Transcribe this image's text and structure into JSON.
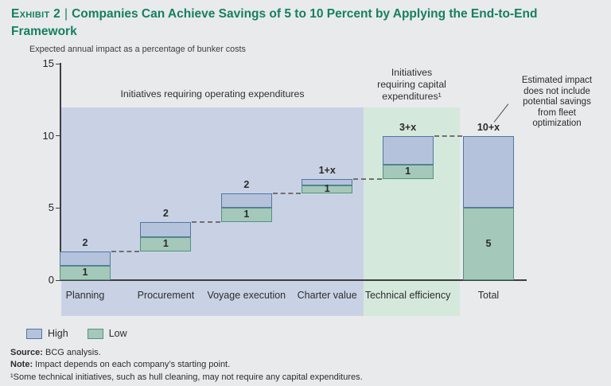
{
  "title": {
    "exhibit": "Exhibit 2",
    "separator": "|",
    "text": "Companies Can Achieve Savings of 5 to 10 Percent by Applying the End-to-End Framework"
  },
  "subtitle": "Expected annual impact as a percentage of bunker costs",
  "colors": {
    "title_green": "#15805f",
    "page_background": "#e9eaec",
    "opex_region": "#c9d2e5",
    "capex_region": "#d5e8dc",
    "high_fill": "#b5c2dc",
    "high_border": "#4f789f",
    "low_fill": "#a4c8b9",
    "low_border": "#55917f"
  },
  "chart_data": {
    "type": "bar",
    "subtype": "stacked-waterfall",
    "title": "Expected annual impact as a percentage of bunker costs",
    "xlabel": "",
    "ylabel": "",
    "ylim": [
      0,
      15
    ],
    "y_axis": {
      "ticks": [
        0,
        5,
        10,
        15
      ]
    },
    "grid": false,
    "legend_position": "bottom-left",
    "categories": [
      "Planning",
      "Procurement",
      "Voyage execution",
      "Charter value",
      "Technical efficiency",
      "Total"
    ],
    "series": [
      {
        "name": "Low",
        "color": "#a4c8b9"
      },
      {
        "name": "High",
        "color": "#b5c2dc"
      }
    ],
    "bars": [
      {
        "category": "Planning",
        "base": 0,
        "low": 1,
        "high": 1,
        "total_label": "2",
        "low_label": "1"
      },
      {
        "category": "Procurement",
        "base": 2,
        "low": 1,
        "high": 1,
        "total_label": "2",
        "low_label": "1"
      },
      {
        "category": "Voyage execution",
        "base": 4,
        "low": 1,
        "high": 1,
        "total_label": "2",
        "low_label": "1"
      },
      {
        "category": "Charter value",
        "base": 6,
        "low": 0.55,
        "high": 0.45,
        "total_label": "1+x",
        "low_label": "1"
      },
      {
        "category": "Technical efficiency",
        "base": 7,
        "low": 1,
        "high": 2,
        "total_label": "3+x",
        "low_label": "1"
      },
      {
        "category": "Total",
        "base": 0,
        "low": 5,
        "high": 5,
        "total_label": "10+x",
        "low_label": "5"
      }
    ],
    "regions": [
      {
        "id": "opex",
        "label": "Initiatives requiring operating expenditures",
        "covers": [
          "Planning",
          "Procurement",
          "Voyage execution",
          "Charter value"
        ]
      },
      {
        "id": "capex",
        "label": "Initiatives\nrequiring capital\nexpenditures¹",
        "covers": [
          "Technical efficiency"
        ]
      }
    ],
    "legend": [
      {
        "label": "High",
        "color": "#b5c2dc"
      },
      {
        "label": "Low",
        "color": "#a4c8b9"
      }
    ],
    "annotation": "Estimated impact\ndoes not include\npotential savings\nfrom fleet\noptimization"
  },
  "footer": {
    "source_label": "Source:",
    "source_text": "BCG analysis.",
    "note_label": "Note:",
    "note_text": "Impact depends on each company’s starting point.",
    "footnote": "¹Some technical initiatives, such as hull cleaning, may not require any capital expenditures."
  }
}
